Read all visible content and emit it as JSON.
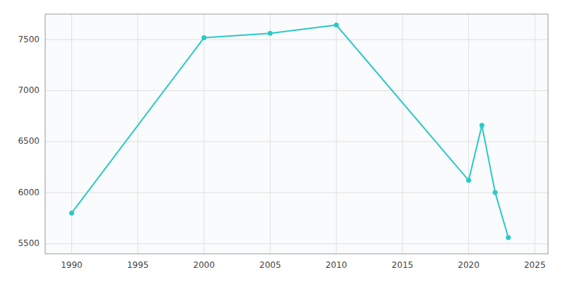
{
  "chart_data": {
    "type": "line",
    "x": [
      1990,
      2000,
      2005,
      2010,
      2020,
      2021,
      2022,
      2023
    ],
    "values": [
      5800,
      7518,
      7562,
      7643,
      6120,
      6659,
      6002,
      5559
    ],
    "color": "#2bc8c8",
    "marker": "circle",
    "xlim": [
      1988,
      2026
    ],
    "ylim": [
      5400,
      7750
    ],
    "xticks": [
      1990,
      1995,
      2000,
      2005,
      2010,
      2015,
      2020,
      2025
    ],
    "yticks": [
      5500,
      6000,
      6500,
      7000,
      7500
    ],
    "grid": true
  }
}
